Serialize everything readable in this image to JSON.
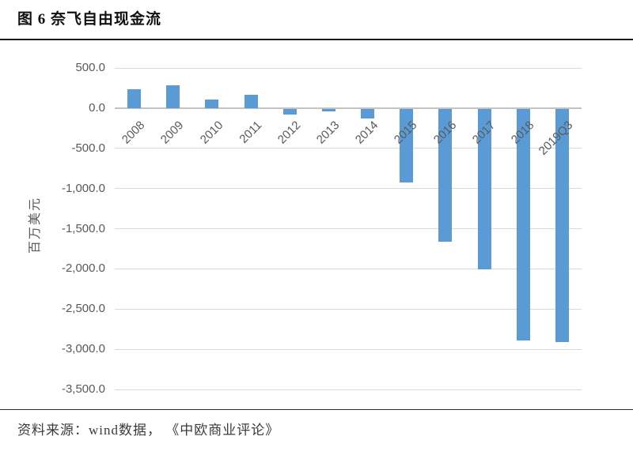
{
  "page": {
    "title": "图 6  奈飞自由现金流",
    "source_note": "资料来源：wind数据， 《中欧商业评论》"
  },
  "chart_data": {
    "type": "bar",
    "title": "奈飞自由现金流",
    "xlabel": "",
    "ylabel": "百万美元",
    "categories": [
      "2008",
      "2009",
      "2010",
      "2011",
      "2012",
      "2013",
      "2014",
      "2015",
      "2016",
      "2017",
      "2018",
      "2019Q3"
    ],
    "values": [
      230,
      280,
      110,
      170,
      -70,
      -30,
      -120,
      -920,
      -1650,
      -2000,
      -2880,
      -2900
    ],
    "ylim": [
      -3500,
      500
    ],
    "yticks": [
      {
        "value": 500,
        "label": "500.0"
      },
      {
        "value": 0,
        "label": "0.0"
      },
      {
        "value": -500,
        "label": "-500.0"
      },
      {
        "value": -1000,
        "label": "-1,000.0"
      },
      {
        "value": -1500,
        "label": "-1,500.0"
      },
      {
        "value": -2000,
        "label": "-2,000.0"
      },
      {
        "value": -2500,
        "label": "-2,500.0"
      },
      {
        "value": -3000,
        "label": "-3,000.0"
      },
      {
        "value": -3500,
        "label": "-3,500.0"
      }
    ],
    "grid": true,
    "legend": false,
    "colors": {
      "bar": "#5b9bd5",
      "gridline": "#d9d9d9",
      "zero_axis": "#c3c3c3",
      "tick_label": "#595959",
      "title_text": "#111111",
      "source_text": "#3b3b3b"
    }
  }
}
